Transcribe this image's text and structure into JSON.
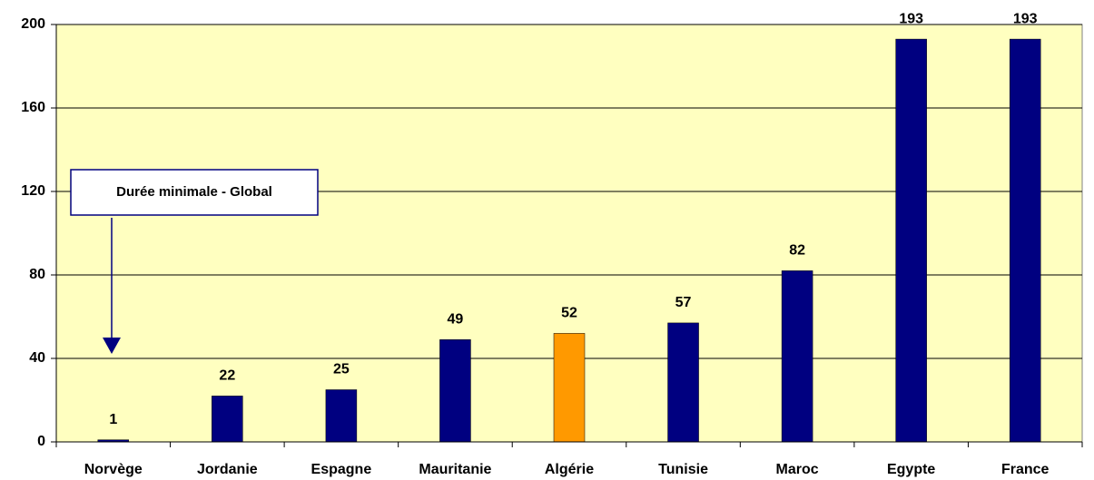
{
  "chart_data": {
    "type": "bar",
    "annotation": "Durée minimale - Global",
    "categories": [
      "Norvège",
      "Jordanie",
      "Espagne",
      "Mauritanie",
      "Algérie",
      "Tunisie",
      "Maroc",
      "Egypte",
      "France"
    ],
    "values": [
      1,
      22,
      25,
      49,
      52,
      57,
      82,
      193,
      193
    ],
    "colors": [
      "#000080",
      "#000080",
      "#000080",
      "#000080",
      "#ff9900",
      "#000080",
      "#000080",
      "#000080",
      "#000080"
    ],
    "ylim": [
      0,
      200
    ],
    "yticks": [
      0,
      40,
      80,
      120,
      160,
      200
    ],
    "grid": true,
    "background": "#ffffc0"
  }
}
